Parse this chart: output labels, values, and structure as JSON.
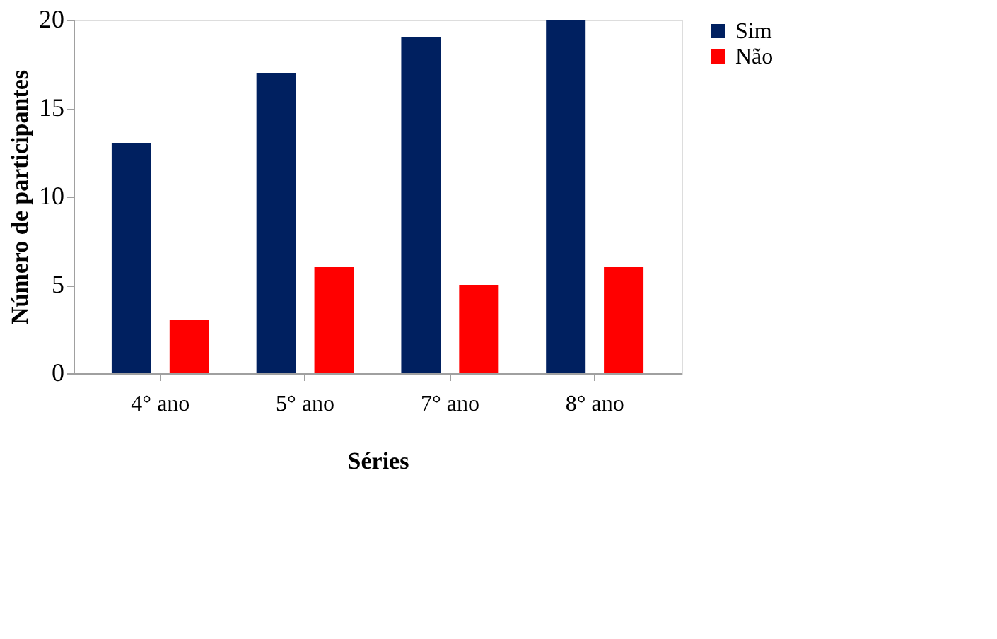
{
  "chart_data": {
    "type": "bar",
    "xlabel": "Séries",
    "ylabel": "Número de participantes",
    "categories": [
      "4° ano",
      "5° ano",
      "7° ano",
      "8° ano"
    ],
    "series": [
      {
        "name": "Sim",
        "color": "#002060",
        "values": [
          13,
          17,
          19,
          20
        ]
      },
      {
        "name": "Não",
        "color": "#ff0000",
        "values": [
          3,
          6,
          5,
          6
        ]
      }
    ],
    "ylim": [
      0,
      20
    ],
    "yticks": [
      0,
      5,
      10,
      15,
      20
    ],
    "grid": false,
    "legend": "right"
  }
}
